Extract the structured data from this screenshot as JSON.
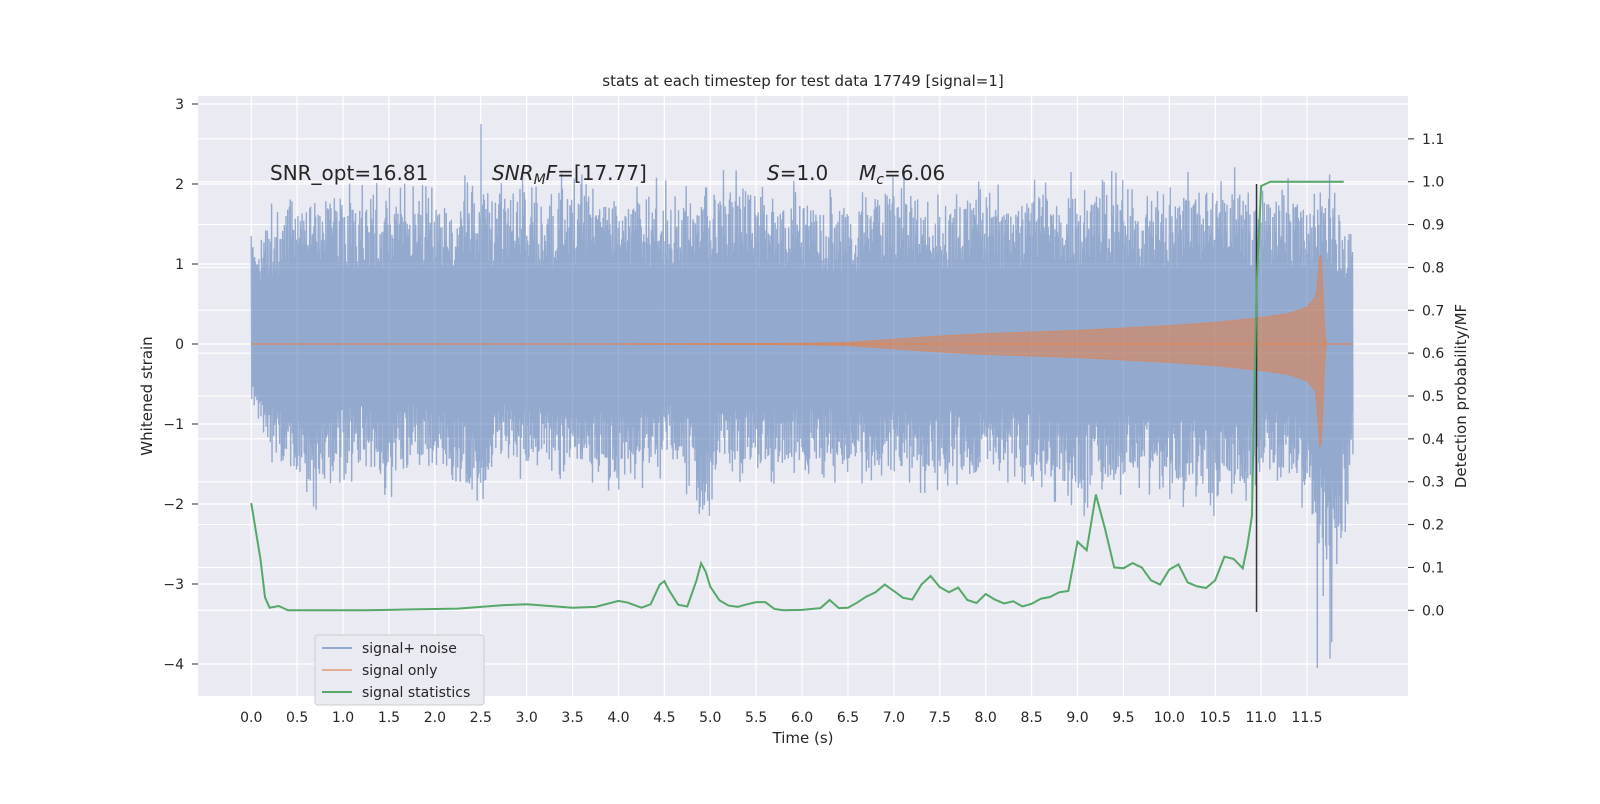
{
  "chart_data": {
    "type": "line",
    "title": "stats at each timestep for test data 17749 [signal=1]",
    "xlabel": "Time (s)",
    "ylabel_left": "Whitened strain",
    "ylabel_right": "Detection probability/MF",
    "xlim": [
      -0.58,
      12.6
    ],
    "ylim_left": [
      -4.4,
      3.1
    ],
    "ylim_right": [
      -0.2,
      1.2
    ],
    "x_ticks": [
      0.0,
      0.5,
      1.0,
      1.5,
      2.0,
      2.5,
      3.0,
      3.5,
      4.0,
      4.5,
      5.0,
      5.5,
      6.0,
      6.5,
      7.0,
      7.5,
      8.0,
      8.5,
      9.0,
      9.5,
      10.0,
      10.5,
      11.0,
      11.5
    ],
    "y_ticks_left": [
      3,
      2,
      1,
      0,
      -1,
      -2,
      -3,
      -4
    ],
    "y_ticks_right": [
      1.1,
      1.0,
      0.9,
      0.8,
      0.7,
      0.6,
      0.5,
      0.4,
      0.3,
      0.2,
      0.1,
      0.0
    ],
    "grid": true,
    "legend_position": "lower-left",
    "annotations": [
      {
        "text": "SNR_opt=16.81",
        "x": 0.2,
        "y": 2.0
      },
      {
        "text": "SNR_MF=[17.77]",
        "x": 2.6,
        "y": 2.0
      },
      {
        "text": "S=1.0",
        "x": 5.6,
        "y": 2.0
      },
      {
        "text": "M_c=6.06",
        "x": 6.6,
        "y": 2.0
      }
    ],
    "series": [
      {
        "name": "signal+ noise",
        "axis": "left",
        "color": "#4c72b0",
        "x_range": [
          0.0,
          12.0
        ],
        "upper_envelope": [
          1.5,
          1.8,
          2.3,
          2.1,
          2.1,
          2.0,
          2.1,
          2.0,
          2.2,
          2.0,
          2.3,
          2.1,
          2.3,
          2.0,
          2.2,
          2.2,
          2.0,
          2.0,
          2.1,
          2.0,
          2.2,
          2.2,
          2.3,
          1.9,
          2.1,
          2.0,
          2.0,
          2.0,
          2.2,
          2.3,
          2.1,
          2.0,
          2.2,
          2.0,
          2.0,
          2.3,
          2.2,
          2.2,
          2.2,
          2.2,
          1.9,
          2.0,
          2.3,
          2.3,
          2.2,
          2.1,
          2.2,
          2.0,
          2.2,
          1.5
        ],
        "lower_envelope": [
          -1.0,
          -1.6,
          -1.9,
          -2.1,
          -1.8,
          -1.7,
          -2.0,
          -1.7,
          -1.6,
          -1.8,
          -2.4,
          -1.6,
          -1.8,
          -1.7,
          -1.7,
          -1.8,
          -2.0,
          -1.9,
          -1.7,
          -1.7,
          -2.5,
          -1.7,
          -1.8,
          -1.9,
          -1.8,
          -1.7,
          -1.8,
          -1.7,
          -2.0,
          -1.8,
          -1.9,
          -1.8,
          -2.0,
          -1.7,
          -1.8,
          -1.9,
          -2.0,
          -2.2,
          -2.0,
          -1.9,
          -1.9,
          -2.2,
          -1.9,
          -2.3,
          -2.1,
          -1.9,
          -1.8,
          -2.2,
          -4.0,
          -1.6
        ],
        "peak_max": 2.75,
        "peak_min": -4.05
      },
      {
        "name": "signal only",
        "axis": "left",
        "color": "#dd8452",
        "x": [
          0.0,
          4.0,
          6.0,
          6.5,
          7.0,
          7.5,
          8.0,
          8.5,
          9.0,
          9.5,
          10.0,
          10.5,
          11.0,
          11.3,
          11.5,
          11.6,
          11.65,
          11.7,
          11.75,
          12.0
        ],
        "amplitude": [
          0.0,
          0.0,
          0.01,
          0.02,
          0.06,
          0.1,
          0.13,
          0.15,
          0.17,
          0.2,
          0.23,
          0.27,
          0.33,
          0.38,
          0.46,
          0.6,
          1.25,
          0.0,
          0.0,
          0.0
        ]
      },
      {
        "name": "signal statistics",
        "axis": "right",
        "color": "#55a868",
        "x": [
          0.0,
          0.1,
          0.15,
          0.2,
          0.3,
          0.4,
          0.5,
          0.75,
          1.0,
          1.25,
          1.5,
          1.75,
          2.0,
          2.25,
          2.5,
          2.75,
          3.0,
          3.25,
          3.5,
          3.75,
          4.0,
          4.1,
          4.25,
          4.35,
          4.45,
          4.5,
          4.55,
          4.65,
          4.75,
          4.85,
          4.9,
          4.95,
          5.0,
          5.1,
          5.2,
          5.3,
          5.4,
          5.5,
          5.6,
          5.7,
          5.8,
          6.0,
          6.2,
          6.3,
          6.4,
          6.5,
          6.6,
          6.7,
          6.8,
          6.9,
          7.0,
          7.1,
          7.2,
          7.3,
          7.4,
          7.5,
          7.6,
          7.7,
          7.8,
          7.9,
          8.0,
          8.1,
          8.2,
          8.3,
          8.4,
          8.5,
          8.6,
          8.7,
          8.8,
          8.9,
          9.0,
          9.1,
          9.2,
          9.3,
          9.4,
          9.5,
          9.6,
          9.7,
          9.8,
          9.9,
          10.0,
          10.1,
          10.2,
          10.3,
          10.4,
          10.5,
          10.6,
          10.7,
          10.8,
          10.85,
          10.9,
          10.95,
          11.0,
          11.1,
          11.2,
          11.5,
          11.9
        ],
        "values": [
          0.25,
          0.12,
          0.03,
          0.006,
          0.01,
          0.0,
          0.0,
          0.0,
          0.0,
          0.0,
          0.001,
          0.002,
          0.003,
          0.004,
          0.008,
          0.012,
          0.014,
          0.01,
          0.006,
          0.008,
          0.022,
          0.018,
          0.006,
          0.014,
          0.06,
          0.068,
          0.047,
          0.013,
          0.009,
          0.07,
          0.11,
          0.09,
          0.055,
          0.023,
          0.011,
          0.008,
          0.014,
          0.019,
          0.019,
          0.003,
          0.0,
          0.001,
          0.005,
          0.024,
          0.005,
          0.006,
          0.018,
          0.032,
          0.042,
          0.06,
          0.045,
          0.029,
          0.025,
          0.06,
          0.08,
          0.054,
          0.042,
          0.053,
          0.024,
          0.017,
          0.038,
          0.025,
          0.016,
          0.021,
          0.009,
          0.015,
          0.027,
          0.031,
          0.042,
          0.045,
          0.16,
          0.14,
          0.27,
          0.19,
          0.1,
          0.098,
          0.11,
          0.1,
          0.07,
          0.06,
          0.095,
          0.107,
          0.065,
          0.056,
          0.052,
          0.07,
          0.125,
          0.12,
          0.098,
          0.15,
          0.22,
          0.75,
          0.99,
          1.0,
          1.0,
          1.0,
          1.0
        ]
      }
    ],
    "vertical_line": {
      "x": 10.95,
      "ymin": -3.35,
      "ymax": 2.0,
      "color": "#333333"
    }
  }
}
